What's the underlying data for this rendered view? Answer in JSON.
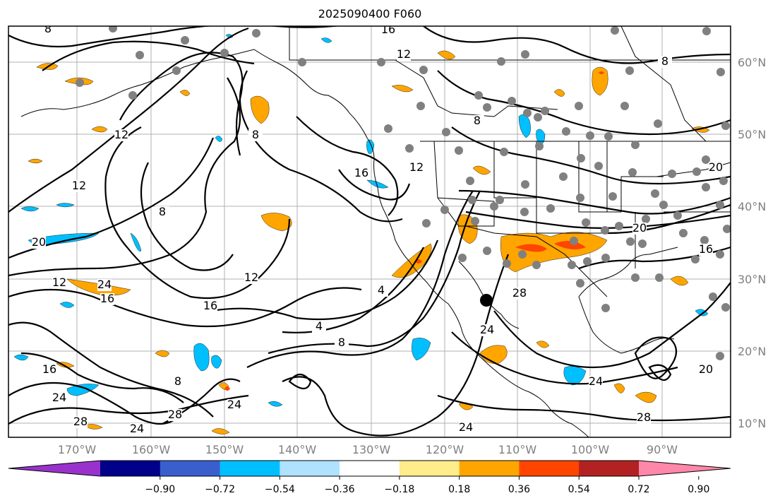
{
  "title": "2025090400 F060",
  "map": {
    "lon_ticks": [
      "170°W",
      "160°W",
      "150°W",
      "140°W",
      "130°W",
      "120°W",
      "110°W",
      "100°W",
      "90°W"
    ],
    "lat_ticks": [
      "60°N",
      "50°N",
      "40°N",
      "30°N",
      "20°N",
      "10°N"
    ],
    "contour_labels": [
      "8",
      "16",
      "12",
      "8",
      "12",
      "8",
      "16",
      "12",
      "20",
      "24",
      "12",
      "16",
      "16",
      "12",
      "8",
      "4",
      "8",
      "4",
      "12",
      "24",
      "8",
      "24",
      "28",
      "24",
      "28",
      "24",
      "8",
      "20",
      "20",
      "16",
      "20",
      "24",
      "28",
      "24",
      "16",
      "28"
    ],
    "colors": {
      "contour": "#000000",
      "coast": "#000000",
      "grid": "#b0b0b0",
      "station": "#808080",
      "positive_low": "#ffa500",
      "positive_high": "#ff4500",
      "negative_low": "#00bfff",
      "negative_high": "#3a5fcd"
    }
  },
  "colorbar": {
    "colors": [
      "#9932cc",
      "#00008b",
      "#3a5fcd",
      "#00bfff",
      "#b0e2ff",
      "#ffffff",
      "#ffec8b",
      "#ffa500",
      "#ff4500",
      "#b22222",
      "#ff88aa"
    ],
    "tick_labels": [
      "−0.90",
      "−0.72",
      "−0.54",
      "−0.36",
      "−0.18",
      "0.18",
      "0.36",
      "0.54",
      "0.72",
      "0.90"
    ]
  }
}
